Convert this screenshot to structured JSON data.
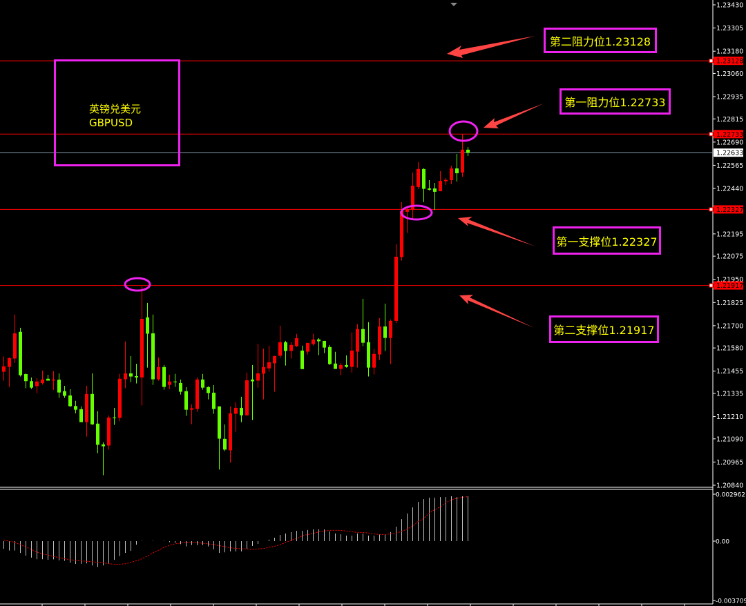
{
  "title_box": {
    "line1": "英镑兑美元",
    "line2": "GBPUSD"
  },
  "annotations": [
    {
      "label": "第二阻力位1.23128",
      "price": 1.23128
    },
    {
      "label": "第一阻力位1.22733",
      "price": 1.22733
    },
    {
      "label": "第一支撑位1.22327",
      "price": 1.22327
    },
    {
      "label": "第二支撑位1.21917",
      "price": 1.21917
    }
  ],
  "colors": {
    "background": "#000000",
    "up_candle": "#ff0000",
    "down_candle": "#66ff00",
    "level_line": "#ff0000",
    "current_price_line": "#8899aa",
    "annotation_border": "#ee22ee",
    "annotation_text": "#ffff00",
    "arrow": "#ff4444",
    "histogram": "#c0c0c0",
    "signal": "#ff0000"
  },
  "chart_data": [
    {
      "type": "candlestick",
      "symbol": "GBPUSD",
      "ylim": [
        1.2084,
        1.2343
      ],
      "y_ticks": [
        "1.23430",
        "1.23305",
        "1.23180",
        "1.23060",
        "1.22935",
        "1.22815",
        "1.22690",
        "1.22565",
        "1.22440",
        "1.22195",
        "1.22075",
        "1.21950",
        "1.21825",
        "1.21700",
        "1.21580",
        "1.21455",
        "1.21335",
        "1.21210",
        "1.21090",
        "1.20965",
        "1.20840"
      ],
      "levels": [
        {
          "value": "1.23128",
          "kind": "resistance"
        },
        {
          "value": "1.22733",
          "kind": "resistance"
        },
        {
          "value": "1.22327",
          "kind": "support"
        },
        {
          "value": "1.21917",
          "kind": "support"
        }
      ],
      "current_price": "1.22633",
      "ohlc": [
        [
          1.21452,
          1.21534,
          1.21404,
          1.21481
        ],
        [
          1.21478,
          1.21529,
          1.21369,
          1.21525
        ],
        [
          1.21523,
          1.2176,
          1.21499,
          1.21659
        ],
        [
          1.21667,
          1.21689,
          1.21426,
          1.21433
        ],
        [
          1.21439,
          1.21443,
          1.21363,
          1.21401
        ],
        [
          1.21401,
          1.21421,
          1.21359,
          1.21366
        ],
        [
          1.21374,
          1.21417,
          1.21336,
          1.21399
        ],
        [
          1.21391,
          1.21458,
          1.21383,
          1.2141
        ],
        [
          1.21414,
          1.21435,
          1.21404,
          1.21404
        ],
        [
          1.21404,
          1.21455,
          1.21354,
          1.2141
        ],
        [
          1.21409,
          1.21443,
          1.21311,
          1.2134
        ],
        [
          1.21347,
          1.21376,
          1.21311,
          1.21322
        ],
        [
          1.21324,
          1.21358,
          1.21262,
          1.21266
        ],
        [
          1.21267,
          1.21295,
          1.21228,
          1.21247
        ],
        [
          1.2125,
          1.21265,
          1.2118,
          1.2118
        ],
        [
          1.2118,
          1.21376,
          1.21102,
          1.21332
        ],
        [
          1.21332,
          1.21443,
          1.21165,
          1.21168
        ],
        [
          1.21172,
          1.21239,
          1.21013,
          1.21058
        ],
        [
          1.2106,
          1.21071,
          1.20894,
          1.2105
        ],
        [
          1.21054,
          1.21216,
          1.21032,
          1.21205
        ],
        [
          1.21205,
          1.21257,
          1.21165,
          1.21201
        ],
        [
          1.21203,
          1.2144,
          1.21184,
          1.21414
        ],
        [
          1.21411,
          1.21615,
          1.21363,
          1.21443
        ],
        [
          1.21443,
          1.21536,
          1.21396,
          1.21426
        ],
        [
          1.21428,
          1.21495,
          1.21389,
          1.21421
        ],
        [
          1.21421,
          1.21912,
          1.2127,
          1.21737
        ],
        [
          1.21745,
          1.21823,
          1.21474,
          1.21657
        ],
        [
          1.21659,
          1.2176,
          1.21381,
          1.21411
        ],
        [
          1.21411,
          1.21529,
          1.21404,
          1.21477
        ],
        [
          1.21477,
          1.21488,
          1.21355,
          1.2137
        ],
        [
          1.21381,
          1.21436,
          1.21359,
          1.21399
        ],
        [
          1.21399,
          1.2144,
          1.2137,
          1.21396
        ],
        [
          1.21391,
          1.2141,
          1.21329,
          1.21344
        ],
        [
          1.21347,
          1.21369,
          1.21214,
          1.21247
        ],
        [
          1.21247,
          1.21276,
          1.21169,
          1.21255
        ],
        [
          1.21251,
          1.21421,
          1.21236,
          1.2141
        ],
        [
          1.2141,
          1.2144,
          1.21355,
          1.21366
        ],
        [
          1.21369,
          1.21373,
          1.21303,
          1.21337
        ],
        [
          1.21339,
          1.2138,
          1.21225,
          1.21251
        ],
        [
          1.21265,
          1.21265,
          1.20924,
          1.21091
        ],
        [
          1.2109,
          1.21168,
          1.21024,
          1.21032
        ],
        [
          1.21028,
          1.21265,
          1.20961,
          1.21228
        ],
        [
          1.21225,
          1.21287,
          1.21128,
          1.21257
        ],
        [
          1.21257,
          1.21317,
          1.2118,
          1.21217
        ],
        [
          1.21217,
          1.21447,
          1.21214,
          1.21406
        ],
        [
          1.2141,
          1.21488,
          1.21191,
          1.214
        ],
        [
          1.21404,
          1.21603,
          1.21366,
          1.21443
        ],
        [
          1.21441,
          1.21577,
          1.21303,
          1.21477
        ],
        [
          1.2147,
          1.21592,
          1.21452,
          1.21503
        ],
        [
          1.21497,
          1.21538,
          1.21344,
          1.21536
        ],
        [
          1.21538,
          1.217,
          1.21526,
          1.21611
        ],
        [
          1.21611,
          1.21618,
          1.21485,
          1.21564
        ],
        [
          1.21564,
          1.21611,
          1.21523,
          1.21596
        ],
        [
          1.2159,
          1.21656,
          1.21585,
          1.21633
        ],
        [
          1.21566,
          1.21592,
          1.21466,
          1.21466
        ],
        [
          1.2156,
          1.21607,
          1.21545,
          1.21607
        ],
        [
          1.21601,
          1.21656,
          1.21593,
          1.21626
        ],
        [
          1.21626,
          1.21633,
          1.21541,
          1.21616
        ],
        [
          1.21618,
          1.21618,
          1.21552,
          1.21582
        ],
        [
          1.21585,
          1.21596,
          1.21489,
          1.21493
        ],
        [
          1.21496,
          1.21559,
          1.21467,
          1.21467
        ],
        [
          1.21467,
          1.21499,
          1.21433,
          1.21488
        ],
        [
          1.21488,
          1.2154,
          1.21474,
          1.21478
        ],
        [
          1.21478,
          1.21664,
          1.21448,
          1.21566
        ],
        [
          1.2156,
          1.21708,
          1.21474,
          1.21682
        ],
        [
          1.21682,
          1.21845,
          1.2159,
          1.21608
        ],
        [
          1.21611,
          1.21719,
          1.21426,
          1.21474
        ],
        [
          1.21474,
          1.21574,
          1.21437,
          1.21548
        ],
        [
          1.21545,
          1.21741,
          1.21515,
          1.21696
        ],
        [
          1.21696,
          1.21819,
          1.21564,
          1.21634
        ],
        [
          1.21634,
          1.21734,
          1.21493,
          1.21726
        ],
        [
          1.21726,
          1.22139,
          1.21714,
          1.22072
        ],
        [
          1.2207,
          1.22366,
          1.22051,
          1.22318
        ],
        [
          1.22314,
          1.2234,
          1.222,
          1.22329
        ],
        [
          1.22325,
          1.22526,
          1.2227,
          1.22455
        ],
        [
          1.22448,
          1.22582,
          1.22437,
          1.22545
        ],
        [
          1.22545,
          1.22549,
          1.22366,
          1.22438
        ],
        [
          1.2244,
          1.22485,
          1.22429,
          1.22433
        ],
        [
          1.2244,
          1.2247,
          1.22325,
          1.22422
        ],
        [
          1.22425,
          1.22533,
          1.22425,
          1.22481
        ],
        [
          1.22479,
          1.22496,
          1.22459,
          1.22486
        ],
        [
          1.22485,
          1.22563,
          1.22463,
          1.22548
        ],
        [
          1.22548,
          1.22626,
          1.22477,
          1.22522
        ],
        [
          1.22526,
          1.22734,
          1.22503,
          1.22649
        ],
        [
          1.22649,
          1.22663,
          1.22615,
          1.22633
        ]
      ]
    },
    {
      "type": "bar+line",
      "indicator": "MACD",
      "ylim": [
        -0.003709,
        0.002962
      ],
      "y_ticks": [
        "0.002962",
        "0.00",
        "-0.003709"
      ],
      "histogram": [
        -0.00048,
        -0.00059,
        -0.00059,
        -0.00074,
        -0.00091,
        -0.00103,
        -0.00113,
        -0.00113,
        -0.00117,
        -0.00114,
        -0.0012,
        -0.00123,
        -0.00135,
        -0.00143,
        -0.00142,
        -0.00139,
        -0.00152,
        -0.00161,
        -0.00152,
        -0.00142,
        -0.00117,
        -0.00094,
        -0.00074,
        -0.00061,
        -0.00022,
        2e-05,
        0.0,
        2e-05,
        0.0,
        2e-05,
        -6e-05,
        -0.0001,
        -0.00019,
        -0.00033,
        -0.00025,
        -0.00025,
        -0.00025,
        -0.00033,
        -0.00051,
        -0.00074,
        -0.0007,
        -0.00064,
        -0.00064,
        -0.00064,
        -0.00048,
        -0.0003,
        -0.00017,
        0.0,
        9e-05,
        0.00022,
        0.00039,
        0.00048,
        0.00057,
        0.00065,
        0.00065,
        0.0007,
        0.00074,
        0.00074,
        0.00074,
        0.00061,
        0.00048,
        0.00043,
        0.00035,
        0.00035,
        0.00048,
        0.00048,
        0.00035,
        0.00035,
        0.00043,
        0.00039,
        0.00057,
        0.00091,
        0.00139,
        0.00174,
        0.00213,
        0.00248,
        0.00265,
        0.00274,
        0.00274,
        0.00278,
        0.00278,
        0.00283,
        0.00278,
        0.00283,
        0.00283
      ],
      "signal": [
        7e-05,
        -1e-05,
        -7e-05,
        -0.00023,
        -0.00036,
        -0.00052,
        -0.00068,
        -0.0008,
        -0.00087,
        -0.00096,
        -0.00103,
        -0.0011,
        -0.00116,
        -0.0012,
        -0.00123,
        -0.00126,
        -0.00129,
        -0.00132,
        -0.00136,
        -0.00141,
        -0.00145,
        -0.00145,
        -0.00141,
        -0.00132,
        -0.00123,
        -0.0011,
        -0.00093,
        -0.00074,
        -0.00057,
        -0.00039,
        -0.00026,
        -0.00017,
        -0.00012,
        -7e-05,
        -9e-05,
        -0.0001,
        -0.00013,
        -0.00017,
        -0.00022,
        -0.00028,
        -0.00035,
        -0.00041,
        -0.00046,
        -0.00048,
        -0.00049,
        -0.00052,
        -0.00049,
        -0.00046,
        -0.00039,
        -0.00032,
        -0.00022,
        -9e-05,
        6e-05,
        0.00016,
        0.00033,
        0.00042,
        0.00049,
        0.00058,
        0.00064,
        0.00068,
        0.00068,
        0.00068,
        0.00064,
        0.00059,
        0.00055,
        0.00055,
        0.00051,
        0.00046,
        0.00042,
        0.00042,
        0.00046,
        0.00051,
        0.00061,
        0.00077,
        0.00094,
        0.00126,
        0.00143,
        0.00177,
        0.00199,
        0.00216,
        0.00242,
        0.00261,
        0.0027,
        0.00277,
        0.00281
      ]
    }
  ]
}
